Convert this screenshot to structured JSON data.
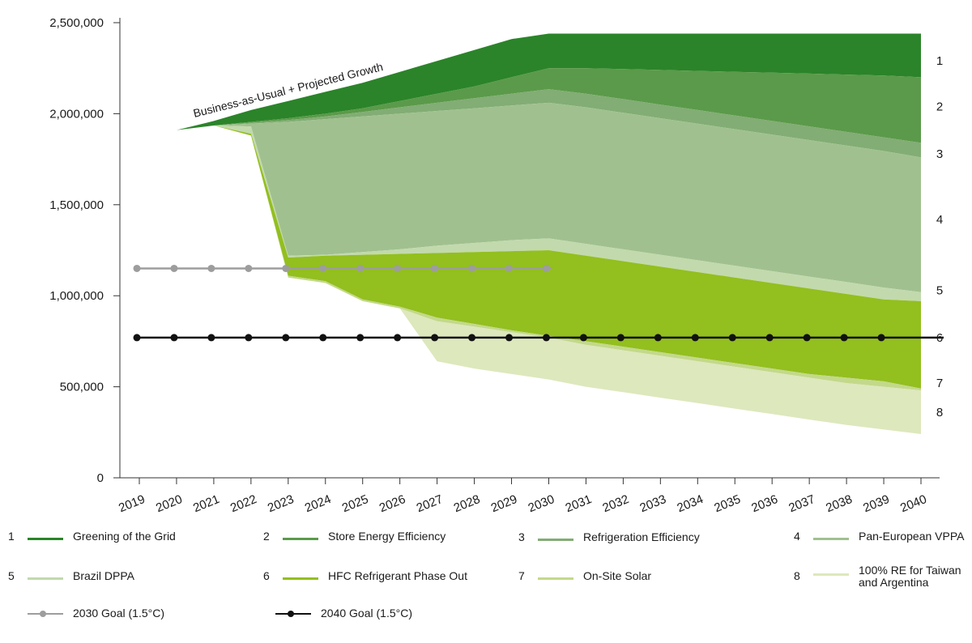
{
  "chart_data": {
    "type": "area",
    "title": "",
    "xlabel": "",
    "ylabel": "",
    "years": [
      "2019",
      "2020",
      "2021",
      "2022",
      "2023",
      "2024",
      "2025",
      "2026",
      "2027",
      "2028",
      "2029",
      "2030",
      "2031",
      "2032",
      "2033",
      "2034",
      "2035",
      "2036",
      "2037",
      "2038",
      "2039",
      "2040"
    ],
    "ylim": [
      0,
      2500000
    ],
    "yticks": [
      "0",
      "500,000",
      "1,000,000",
      "1,500,000",
      "2,000,000",
      "2,500,000"
    ],
    "bau_annotation": "Business-as-Usual + Projected Growth",
    "layers": [
      {
        "id": "1",
        "name": "Greening of the Grid",
        "color": "#2b8429",
        "top": [
          1850000,
          1910000,
          1960000,
          2020000,
          2070000,
          2120000,
          2170000,
          2230000,
          2290000,
          2350000,
          2410000,
          2440000,
          2440000,
          2440000,
          2440000,
          2440000,
          2440000,
          2440000,
          2440000,
          2440000,
          2440000,
          2440000
        ],
        "bottom": [
          1850000,
          1910000,
          1935000,
          1955000,
          1975000,
          2000000,
          2030000,
          2070000,
          2110000,
          2150000,
          2200000,
          2250000,
          2250000,
          2245000,
          2240000,
          2235000,
          2230000,
          2225000,
          2220000,
          2215000,
          2210000,
          2200000
        ]
      },
      {
        "id": "2",
        "name": "Store Energy Efficiency",
        "color": "#5b9a4a",
        "top": [
          1850000,
          1910000,
          1935000,
          1955000,
          1975000,
          2000000,
          2030000,
          2070000,
          2110000,
          2150000,
          2200000,
          2250000,
          2250000,
          2245000,
          2240000,
          2235000,
          2230000,
          2225000,
          2220000,
          2215000,
          2210000,
          2200000
        ],
        "bottom": [
          1850000,
          1910000,
          1935000,
          1950000,
          1965000,
          1985000,
          2010000,
          2035000,
          2060000,
          2085000,
          2110000,
          2135000,
          2110000,
          2080000,
          2050000,
          2020000,
          1990000,
          1960000,
          1930000,
          1900000,
          1870000,
          1840000
        ]
      },
      {
        "id": "3",
        "name": "Refrigeration Efficiency",
        "color": "#82ad74",
        "top": [
          1850000,
          1910000,
          1935000,
          1950000,
          1965000,
          1985000,
          2010000,
          2035000,
          2060000,
          2085000,
          2110000,
          2135000,
          2110000,
          2080000,
          2050000,
          2020000,
          1990000,
          1960000,
          1930000,
          1900000,
          1870000,
          1840000
        ],
        "bottom": [
          1850000,
          1910000,
          1935000,
          1945000,
          1955000,
          1970000,
          1985000,
          2000000,
          2015000,
          2030000,
          2045000,
          2060000,
          2035000,
          2005000,
          1975000,
          1945000,
          1915000,
          1885000,
          1855000,
          1825000,
          1795000,
          1760000
        ]
      },
      {
        "id": "4",
        "name": "Pan-European VPPA",
        "color": "#a0c18f",
        "top": [
          1850000,
          1910000,
          1935000,
          1945000,
          1955000,
          1970000,
          1985000,
          2000000,
          2015000,
          2030000,
          2045000,
          2060000,
          2035000,
          2005000,
          1975000,
          1945000,
          1915000,
          1885000,
          1855000,
          1825000,
          1795000,
          1760000
        ],
        "bottom": [
          1850000,
          1910000,
          1935000,
          1930000,
          1220000,
          1225000,
          1240000,
          1255000,
          1275000,
          1290000,
          1305000,
          1315000,
          1285000,
          1255000,
          1225000,
          1195000,
          1165000,
          1135000,
          1105000,
          1075000,
          1045000,
          1020000
        ]
      },
      {
        "id": "5",
        "name": "Brazil DPPA",
        "color": "#c2d9ad",
        "top": [
          1850000,
          1910000,
          1935000,
          1930000,
          1220000,
          1225000,
          1240000,
          1255000,
          1275000,
          1290000,
          1305000,
          1315000,
          1285000,
          1255000,
          1225000,
          1195000,
          1165000,
          1135000,
          1105000,
          1075000,
          1045000,
          1020000
        ],
        "bottom": [
          1850000,
          1910000,
          1935000,
          1890000,
          1210000,
          1220000,
          1225000,
          1230000,
          1235000,
          1240000,
          1245000,
          1250000,
          1220000,
          1190000,
          1160000,
          1130000,
          1100000,
          1070000,
          1040000,
          1010000,
          980000,
          970000
        ]
      },
      {
        "id": "6",
        "name": "HFC Refrigerant Phase Out",
        "color": "#93bf1f",
        "top": [
          1850000,
          1910000,
          1935000,
          1890000,
          1210000,
          1220000,
          1225000,
          1230000,
          1235000,
          1240000,
          1245000,
          1250000,
          1220000,
          1190000,
          1160000,
          1130000,
          1100000,
          1070000,
          1040000,
          1010000,
          980000,
          970000
        ],
        "bottom": [
          1850000,
          1910000,
          1935000,
          1880000,
          1110000,
          1080000,
          980000,
          940000,
          880000,
          845000,
          810000,
          780000,
          750000,
          720000,
          690000,
          660000,
          630000,
          600000,
          570000,
          550000,
          530000,
          490000
        ]
      },
      {
        "id": "7",
        "name": "On-Site Solar",
        "color": "#c3d98a",
        "top": [
          1850000,
          1910000,
          1935000,
          1880000,
          1110000,
          1080000,
          980000,
          940000,
          880000,
          845000,
          810000,
          780000,
          750000,
          720000,
          690000,
          660000,
          630000,
          600000,
          570000,
          550000,
          530000,
          490000
        ],
        "bottom": [
          1850000,
          1910000,
          1935000,
          1880000,
          1100000,
          1070000,
          970000,
          930000,
          860000,
          830000,
          800000,
          770000,
          730000,
          700000,
          670000,
          640000,
          610000,
          580000,
          550000,
          520000,
          500000,
          480000
        ]
      },
      {
        "id": "8",
        "name": "100% RE for Taiwan and Argentina",
        "color": "#dde8bd",
        "top": [
          1850000,
          1910000,
          1935000,
          1880000,
          1100000,
          1070000,
          970000,
          930000,
          860000,
          830000,
          800000,
          770000,
          730000,
          700000,
          670000,
          640000,
          610000,
          580000,
          550000,
          520000,
          500000,
          480000
        ],
        "bottom": [
          1850000,
          1910000,
          1935000,
          1880000,
          1100000,
          1070000,
          970000,
          930000,
          640000,
          600000,
          570000,
          540000,
          500000,
          470000,
          440000,
          410000,
          380000,
          350000,
          320000,
          290000,
          265000,
          240000
        ]
      }
    ],
    "goals": [
      {
        "name": "2030 Goal (1.5°C)",
        "color": "#9d9d9d",
        "value": 1150000,
        "from": "2019",
        "to": "2030"
      },
      {
        "name": "2040 Goal (1.5°C)",
        "color": "#111111",
        "value": 770000,
        "from": "2019",
        "to": "2040"
      }
    ]
  },
  "legend": {
    "items": [
      {
        "num": "1",
        "label": "Greening of the Grid",
        "color": "#2b8429"
      },
      {
        "num": "2",
        "label": "Store Energy Efficiency",
        "color": "#5b9a4a"
      },
      {
        "num": "3",
        "label": "Refrigeration Efficiency",
        "color": "#82ad74"
      },
      {
        "num": "4",
        "label": "Pan-European VPPA",
        "color": "#a0c18f"
      },
      {
        "num": "5",
        "label": "Brazil DPPA",
        "color": "#c2d9ad"
      },
      {
        "num": "6",
        "label": "HFC Refrigerant Phase Out",
        "color": "#93bf1f"
      },
      {
        "num": "7",
        "label": "On-Site Solar",
        "color": "#c3d98a"
      },
      {
        "num": "8",
        "label": "100% RE for Taiwan and Argentina",
        "color": "#dde8bd"
      }
    ],
    "goals": [
      {
        "label": "2030 Goal (1.5°C)",
        "color": "#9d9d9d"
      },
      {
        "label": "2040 Goal (1.5°C)",
        "color": "#111111"
      }
    ]
  }
}
